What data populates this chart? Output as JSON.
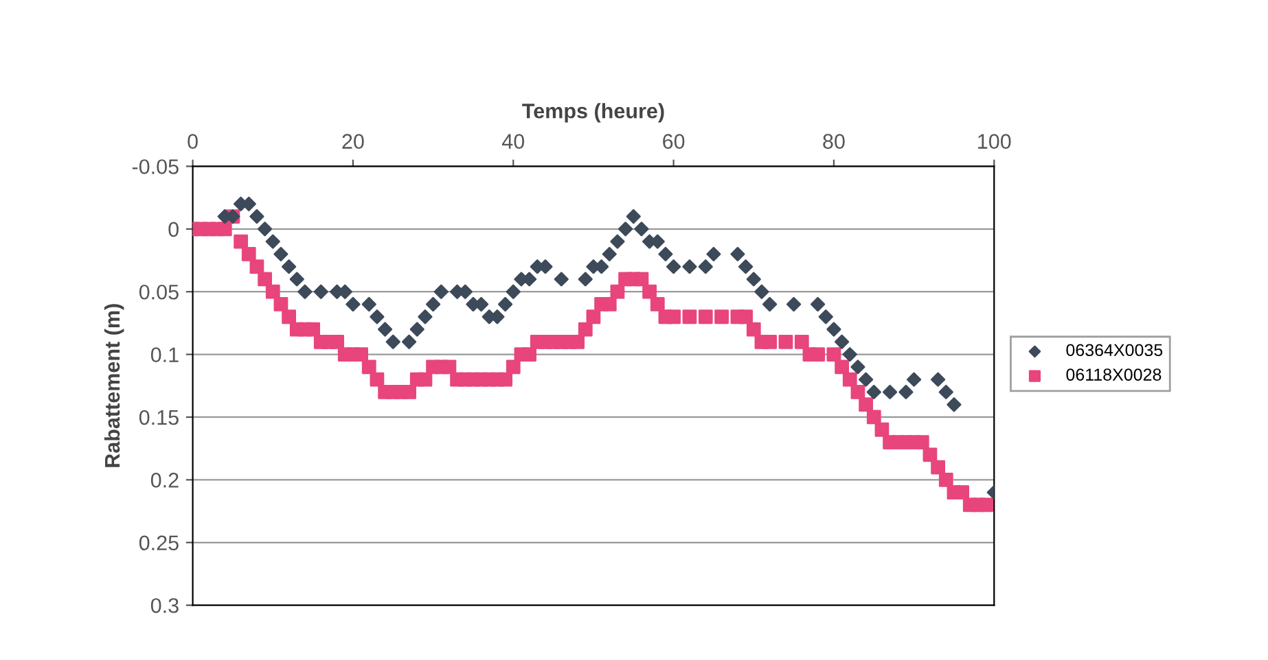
{
  "chart_data": {
    "type": "scatter",
    "xlabel": "Temps (heure)",
    "ylabel": "Rabattement (m)",
    "xlim": [
      0,
      100
    ],
    "xticks": [
      0,
      20,
      40,
      60,
      80,
      100
    ],
    "ylim": [
      0.3,
      -0.05
    ],
    "yticks": [
      {
        "value": -0.05,
        "label": "-0.05"
      },
      0,
      0.05,
      0.1,
      0.15,
      0.2,
      0.25,
      0.3
    ],
    "grid": "y",
    "legend": "right",
    "series": [
      {
        "name": "06364X0035",
        "color": "#3d4a5a",
        "marker": "diamond",
        "x": [
          4,
          5,
          6,
          7,
          8,
          9,
          10,
          11,
          12,
          13,
          14,
          16,
          18,
          19,
          20,
          22,
          23,
          24,
          25,
          27,
          28,
          29,
          30,
          31,
          33,
          34,
          35,
          36,
          37,
          38,
          39,
          40,
          41,
          42,
          43,
          44,
          46,
          49,
          50,
          51,
          52,
          53,
          54,
          55,
          56,
          57,
          58,
          59,
          60,
          62,
          64,
          65,
          68,
          69,
          70,
          71,
          72,
          75,
          78,
          79,
          80,
          81,
          82,
          83,
          84,
          85,
          87,
          89,
          90,
          93,
          94,
          95,
          100
        ],
        "values": [
          -0.01,
          -0.01,
          -0.02,
          -0.02,
          -0.01,
          0,
          0.01,
          0.02,
          0.03,
          0.04,
          0.05,
          0.05,
          0.05,
          0.05,
          0.06,
          0.06,
          0.07,
          0.08,
          0.09,
          0.09,
          0.08,
          0.07,
          0.06,
          0.05,
          0.05,
          0.05,
          0.06,
          0.06,
          0.07,
          0.07,
          0.06,
          0.05,
          0.04,
          0.04,
          0.03,
          0.03,
          0.04,
          0.04,
          0.03,
          0.03,
          0.02,
          0.01,
          0,
          -0.01,
          0,
          0.01,
          0.01,
          0.02,
          0.03,
          0.03,
          0.03,
          0.02,
          0.02,
          0.03,
          0.04,
          0.05,
          0.06,
          0.06,
          0.06,
          0.07,
          0.08,
          0.09,
          0.1,
          0.11,
          0.12,
          0.13,
          0.13,
          0.13,
          0.12,
          0.12,
          0.13,
          0.14,
          0.21
        ]
      },
      {
        "name": "06118X0028",
        "color": "#e8457c",
        "marker": "square",
        "x": [
          0,
          1,
          2,
          3,
          4,
          5,
          6,
          7,
          8,
          9,
          10,
          11,
          12,
          13,
          14,
          15,
          16,
          17,
          18,
          19,
          20,
          21,
          22,
          23,
          24,
          25,
          26,
          27,
          28,
          29,
          30,
          31,
          32,
          33,
          34,
          35,
          36,
          37,
          38,
          39,
          40,
          41,
          42,
          43,
          44,
          45,
          46,
          47,
          48,
          49,
          50,
          51,
          52,
          53,
          54,
          55,
          56,
          57,
          58,
          59,
          60,
          62,
          64,
          66,
          68,
          69,
          70,
          71,
          72,
          74,
          76,
          77,
          78,
          80,
          81,
          82,
          83,
          84,
          85,
          86,
          87,
          88,
          89,
          90,
          91,
          92,
          93,
          94,
          95,
          96,
          97,
          98,
          99
        ],
        "values": [
          0,
          0,
          0,
          0,
          0,
          -0.01,
          0.01,
          0.02,
          0.03,
          0.04,
          0.05,
          0.06,
          0.07,
          0.08,
          0.08,
          0.08,
          0.09,
          0.09,
          0.09,
          0.1,
          0.1,
          0.1,
          0.11,
          0.12,
          0.13,
          0.13,
          0.13,
          0.13,
          0.12,
          0.12,
          0.11,
          0.11,
          0.11,
          0.12,
          0.12,
          0.12,
          0.12,
          0.12,
          0.12,
          0.12,
          0.11,
          0.1,
          0.1,
          0.09,
          0.09,
          0.09,
          0.09,
          0.09,
          0.09,
          0.08,
          0.07,
          0.06,
          0.06,
          0.05,
          0.04,
          0.04,
          0.04,
          0.05,
          0.06,
          0.07,
          0.07,
          0.07,
          0.07,
          0.07,
          0.07,
          0.07,
          0.08,
          0.09,
          0.09,
          0.09,
          0.09,
          0.1,
          0.1,
          0.1,
          0.11,
          0.12,
          0.13,
          0.14,
          0.15,
          0.16,
          0.17,
          0.17,
          0.17,
          0.17,
          0.17,
          0.18,
          0.19,
          0.2,
          0.21,
          0.21,
          0.22,
          0.22,
          0.22
        ]
      }
    ]
  }
}
